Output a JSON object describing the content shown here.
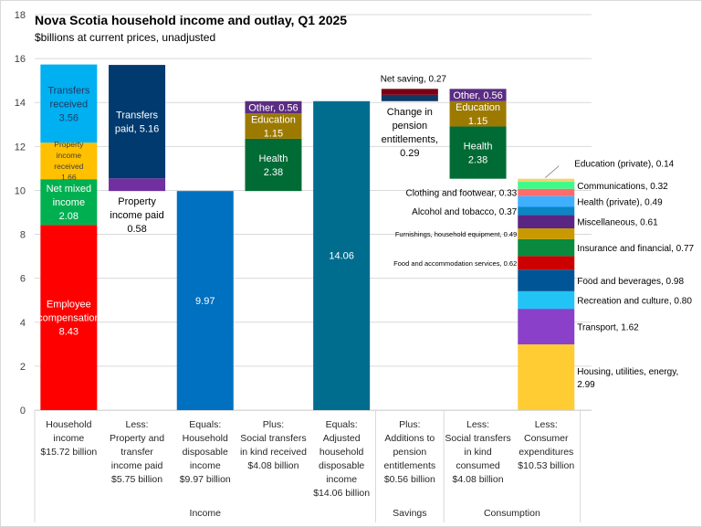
{
  "chart_data": {
    "type": "bar",
    "subtype": "waterfall-stacked",
    "title": "Nova Scotia household  income and outlay, Q1 2025",
    "subtitle": "$billions at current prices, unadjusted",
    "xlabel": "",
    "ylabel": "",
    "ylim": [
      0,
      18
    ],
    "yticks": [
      0,
      2,
      4,
      6,
      8,
      10,
      12,
      14,
      16,
      18
    ],
    "grid": true,
    "legend": "none",
    "categories": [
      {
        "lines": [
          "Household",
          "income",
          "$15.72 billion"
        ]
      },
      {
        "lines": [
          "Less:",
          "Property and",
          "transfer",
          "income paid",
          "$5.75 billion"
        ]
      },
      {
        "lines": [
          "Equals:",
          "Household",
          "disposable",
          "income",
          "$9.97 billion"
        ]
      },
      {
        "lines": [
          "Plus:",
          "Social transfers",
          "in kind received",
          "$4.08 billion"
        ]
      },
      {
        "lines": [
          "Equals:",
          "Adjusted",
          "household",
          "disposable",
          "income",
          "$14.06 billion"
        ]
      },
      {
        "lines": [
          "Plus:",
          "Additions to",
          "pension",
          "entitlements",
          "$0.56 billion"
        ]
      },
      {
        "lines": [
          "Less:",
          "Social transfers",
          "in kind",
          "consumed",
          "$4.08 billion"
        ]
      },
      {
        "lines": [
          "Less:",
          "Consumer",
          "expenditures",
          "$10.53 billion"
        ]
      }
    ],
    "groups": [
      {
        "label": "Income",
        "from": 0,
        "to": 4
      },
      {
        "label": "Savings",
        "from": 5,
        "to": 5
      },
      {
        "label": "Consumption",
        "from": 6,
        "to": 7
      }
    ],
    "bars": [
      {
        "category": 0,
        "base": 0,
        "segments": [
          {
            "name": "Employee compensation",
            "value": 8.43,
            "color": "#ff0000",
            "label": [
              "Employee",
              "compensation",
              "8.43"
            ],
            "label_pos": "inside",
            "label_color": "#ffffff"
          },
          {
            "name": "Net mixed income",
            "value": 2.08,
            "color": "#00b050",
            "label": [
              "Net mixed",
              "income",
              "2.08"
            ],
            "label_pos": "inside",
            "label_color": "#ffffff"
          },
          {
            "name": "Property income received",
            "value": 1.66,
            "color": "#ffc000",
            "label": [
              "Property",
              "income",
              "received",
              "1.66"
            ],
            "label_pos": "inside-small",
            "label_color": "#404040"
          },
          {
            "name": "Transfers received",
            "value": 3.56,
            "color": "#00b0f0",
            "label": [
              "Transfers",
              "received",
              "3.56"
            ],
            "label_pos": "inside",
            "label_color": "#1f3864"
          }
        ]
      },
      {
        "category": 1,
        "base": 9.97,
        "segments": [
          {
            "name": "Property income paid",
            "value": 0.58,
            "color": "#7030a0",
            "label": [
              "Property",
              "income paid",
              "0.58"
            ],
            "label_pos": "below",
            "label_color": "#000000"
          },
          {
            "name": "Transfers paid",
            "value": 5.16,
            "color": "#003a6e",
            "label": [
              "Transfers",
              "paid,  5.16"
            ],
            "label_pos": "inside",
            "label_color": "#ffffff"
          }
        ]
      },
      {
        "category": 2,
        "base": 0,
        "segments": [
          {
            "name": "Household disposable income",
            "value": 9.97,
            "color": "#0070c0",
            "label": [
              "9.97"
            ],
            "label_pos": "inside",
            "label_color": "#ffffff"
          }
        ]
      },
      {
        "category": 3,
        "base": 9.97,
        "segments": [
          {
            "name": "Health",
            "value": 2.38,
            "color": "#006b35",
            "label": [
              "Health",
              "2.38"
            ],
            "label_pos": "inside",
            "label_color": "#ffffff"
          },
          {
            "name": "Education",
            "value": 1.15,
            "color": "#9c7a00",
            "label": [
              "Education",
              "1.15"
            ],
            "label_pos": "inside",
            "label_color": "#ffffff"
          },
          {
            "name": "Other",
            "value": 0.56,
            "color": "#5b2d82",
            "label": [
              "Other,  0.56"
            ],
            "label_pos": "inside",
            "label_color": "#ffffff"
          }
        ]
      },
      {
        "category": 4,
        "base": 0,
        "segments": [
          {
            "name": "Adjusted household disposable income",
            "value": 14.06,
            "color": "#006d8f",
            "label": [
              "14.06"
            ],
            "label_pos": "inside",
            "label_color": "#ffffff"
          }
        ]
      },
      {
        "category": 5,
        "base": 14.06,
        "segments": [
          {
            "name": "Change in pension entitlements",
            "value": 0.29,
            "color": "#0f3a66",
            "label": [
              "Change in",
              "pension",
              "entitlements,",
              "0.29"
            ],
            "label_pos": "below",
            "label_color": "#000000"
          },
          {
            "name": "Net saving",
            "value": 0.27,
            "color": "#7b0014",
            "label": [
              "Net saving,  0.27"
            ],
            "label_pos": "above",
            "label_color": "#000000"
          }
        ]
      },
      {
        "category": 6,
        "base": 10.53,
        "segments": [
          {
            "name": "Health",
            "value": 2.38,
            "color": "#006b35",
            "label": [
              "Health",
              "2.38"
            ],
            "label_pos": "inside",
            "label_color": "#ffffff"
          },
          {
            "name": "Education",
            "value": 1.15,
            "color": "#9c7a00",
            "label": [
              "Education",
              "1.15"
            ],
            "label_pos": "inside",
            "label_color": "#ffffff"
          },
          {
            "name": "Other",
            "value": 0.56,
            "color": "#5b2d82",
            "label": [
              "Other,  0.56"
            ],
            "label_pos": "inside",
            "label_color": "#ffffff"
          }
        ]
      },
      {
        "category": 7,
        "base": 0,
        "segments": [
          {
            "name": "Housing, utilities, energy",
            "value": 2.99,
            "color": "#ffcc33",
            "label": [
              "Housing, utilities, energy,",
              "2.99"
            ],
            "label_pos": "right"
          },
          {
            "name": "Transport",
            "value": 1.62,
            "color": "#8a40c8",
            "label": [
              "Transport,  1.62"
            ],
            "label_pos": "right"
          },
          {
            "name": "Recreation and culture",
            "value": 0.8,
            "color": "#22c4f5",
            "label": [
              "Recreation and culture,  0.80"
            ],
            "label_pos": "right"
          },
          {
            "name": "Food and beverages",
            "value": 0.98,
            "color": "#005596",
            "label": [
              "Food and beverages,  0.98"
            ],
            "label_pos": "right"
          },
          {
            "name": "Food and accommodation services",
            "value": 0.62,
            "color": "#cc0000",
            "label": [
              "Food and accommodation services,   0.62"
            ],
            "label_pos": "left-small"
          },
          {
            "name": "Insurance and financial",
            "value": 0.77,
            "color": "#0a8a3e",
            "label": [
              "Insurance and financial,  0.77"
            ],
            "label_pos": "right"
          },
          {
            "name": "Furnishings, household equipment",
            "value": 0.49,
            "color": "#c99a00",
            "label": [
              "Furnishings, household equipment,  0.49"
            ],
            "label_pos": "left-small"
          },
          {
            "name": "Miscellaneous",
            "value": 0.61,
            "color": "#5b2583",
            "label": [
              "Miscellaneous,  0.61"
            ],
            "label_pos": "right"
          },
          {
            "name": "Alcohol and tobacco",
            "value": 0.37,
            "color": "#0b86c4",
            "label": [
              "Alcohol and tobacco,  0.37"
            ],
            "label_pos": "left"
          },
          {
            "name": "Health (private)",
            "value": 0.49,
            "color": "#3fb0ff",
            "label": [
              "Health (private),  0.49"
            ],
            "label_pos": "right"
          },
          {
            "name": "Clothing and footwear",
            "value": 0.33,
            "color": "#ff6b6b",
            "label": [
              "Clothing and footwear,  0.33"
            ],
            "label_pos": "left"
          },
          {
            "name": "Communications",
            "value": 0.32,
            "color": "#3dfa8a",
            "label": [
              "Communications,  0.32"
            ],
            "label_pos": "right"
          },
          {
            "name": "Education (private)",
            "value": 0.14,
            "color": "#f2d36b",
            "label": [
              "Education (private),  0.14"
            ],
            "label_pos": "right-leader"
          }
        ]
      }
    ]
  }
}
